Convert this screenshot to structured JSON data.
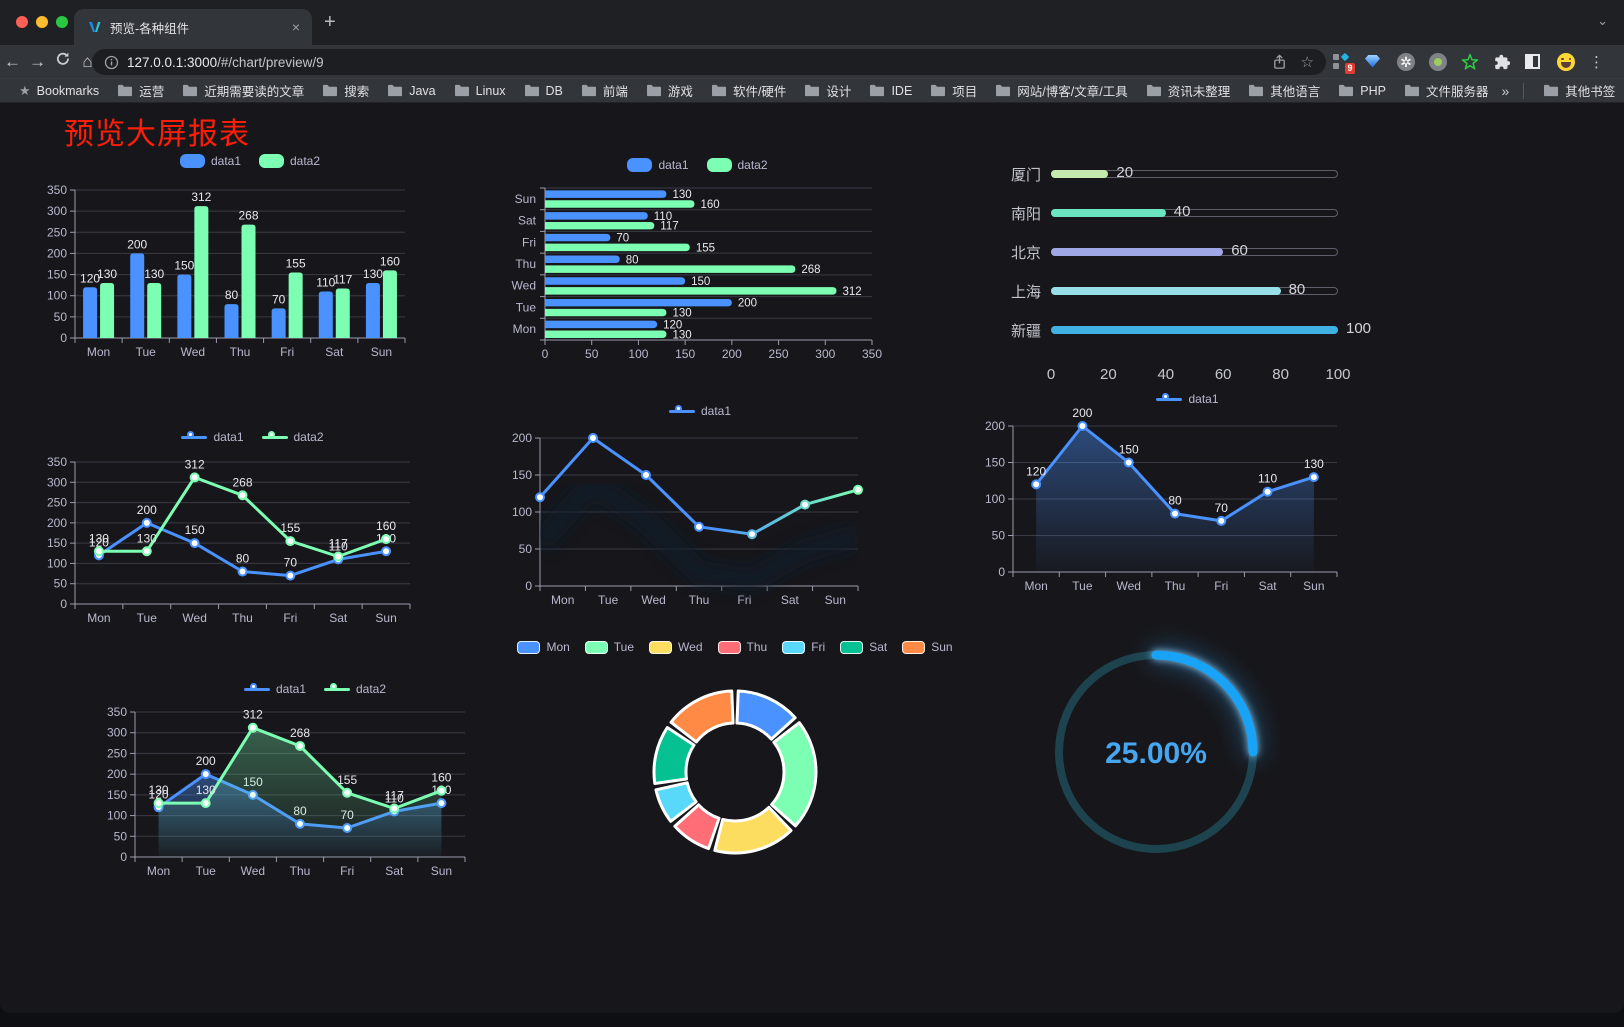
{
  "browser": {
    "tab_title": "预览-各种组件",
    "url_host": "127.0.0.1:3000",
    "url_path": "/#/chart/preview/9",
    "extension_badge": "9",
    "icons": {
      "close": "×",
      "new_tab": "+",
      "tab_chevron": "⌄",
      "back": "←",
      "forward": "→",
      "home": "⌂",
      "bookmark_star": "☆",
      "bookmarks_bar_star": "★",
      "overflow_chevrons": "»",
      "menu_dots": "⋮",
      "asterisk": "✲"
    },
    "extensions": [
      "switch-proxy",
      "blue-gem",
      "asterisk-circle",
      "green-dot",
      "green-star",
      "puzzle",
      "dark-half-square",
      "emoji"
    ],
    "bookmarks_bar": {
      "root_label": "Bookmarks",
      "folders": [
        "运营",
        "近期需要读的文章",
        "搜索",
        "Java",
        "Linux",
        "DB",
        "前端",
        "游戏",
        "软件/硬件",
        "设计",
        "IDE",
        "项目",
        "网站/博客/文章/工具",
        "资讯未整理",
        "其他语言",
        "PHP",
        "文件服务器"
      ],
      "other_bookmarks": "其他书签"
    }
  },
  "page": {
    "title": "预览大屏报表",
    "title_color": "#fb1e08",
    "background": "#17171b",
    "axis_text_color": "#b9b8ce",
    "grid_color": "#3a3a45"
  },
  "chart_data": [
    {
      "id": "grouped-bar",
      "type": "bar",
      "categories": [
        "Mon",
        "Tue",
        "Wed",
        "Thu",
        "Fri",
        "Sat",
        "Sun"
      ],
      "series": [
        {
          "name": "data1",
          "color": "#4992ff",
          "values": [
            120,
            200,
            150,
            80,
            70,
            110,
            130
          ]
        },
        {
          "name": "data2",
          "color": "#7cffb2",
          "values": [
            130,
            130,
            312,
            268,
            155,
            117,
            160
          ]
        }
      ],
      "ylim": [
        0,
        350
      ],
      "ytick": 50,
      "grid": true,
      "legend_position": "top",
      "value_labels": true
    },
    {
      "id": "horizontal-bar",
      "type": "bar",
      "orientation": "horizontal",
      "categories": [
        "Mon",
        "Tue",
        "Wed",
        "Thu",
        "Fri",
        "Sat",
        "Sun"
      ],
      "display_order_top_to_bottom": [
        "Sun",
        "Sat",
        "Fri",
        "Thu",
        "Wed",
        "Tue",
        "Mon"
      ],
      "series": [
        {
          "name": "data1",
          "color": "#4992ff",
          "values": [
            120,
            200,
            150,
            80,
            70,
            110,
            130
          ]
        },
        {
          "name": "data2",
          "color": "#7cffb2",
          "values": [
            130,
            130,
            312,
            268,
            155,
            117,
            160
          ]
        }
      ],
      "xlim": [
        0,
        350
      ],
      "xtick": 50,
      "legend_position": "top",
      "value_labels": true
    },
    {
      "id": "capsule-bar",
      "type": "bar",
      "orientation": "horizontal",
      "style": "capsule",
      "items": [
        {
          "label": "厦门",
          "value": 20,
          "color": "#c4ebad"
        },
        {
          "label": "南阳",
          "value": 40,
          "color": "#6be6c1"
        },
        {
          "label": "北京",
          "value": 60,
          "color": "#a0a7e6"
        },
        {
          "label": "上海",
          "value": 80,
          "color": "#96dee8"
        },
        {
          "label": "新疆",
          "value": 100,
          "color": "#3fb1e3"
        }
      ],
      "xlim": [
        0,
        100
      ],
      "xticks": [
        0,
        20,
        40,
        60,
        80,
        100
      ]
    },
    {
      "id": "dual-line",
      "type": "line",
      "categories": [
        "Mon",
        "Tue",
        "Wed",
        "Thu",
        "Fri",
        "Sat",
        "Sun"
      ],
      "series": [
        {
          "name": "data1",
          "color": "#4992ff",
          "values": [
            120,
            200,
            150,
            80,
            70,
            110,
            130
          ]
        },
        {
          "name": "data2",
          "color": "#7cffb2",
          "values": [
            130,
            130,
            312,
            268,
            155,
            117,
            160
          ]
        }
      ],
      "ylim": [
        0,
        350
      ],
      "ytick": 50,
      "legend_position": "top",
      "value_labels": true
    },
    {
      "id": "gradient-line",
      "type": "line",
      "categories": [
        "Mon",
        "Tue",
        "Wed",
        "Thu",
        "Fri",
        "Sat",
        "Sun"
      ],
      "series": [
        {
          "name": "data1",
          "color": "#4992ff",
          "gradient": [
            "#4992ff",
            "#7cffb2"
          ],
          "values": [
            120,
            200,
            150,
            80,
            70,
            110,
            130
          ]
        }
      ],
      "ylim": [
        0,
        200
      ],
      "ytick": 50,
      "legend_position": "top",
      "value_labels": false,
      "shadow": true
    },
    {
      "id": "single-area",
      "type": "area",
      "categories": [
        "Mon",
        "Tue",
        "Wed",
        "Thu",
        "Fri",
        "Sat",
        "Sun"
      ],
      "series": [
        {
          "name": "data1",
          "color": "#4992ff",
          "area": true,
          "values": [
            120,
            200,
            150,
            80,
            70,
            110,
            130
          ]
        }
      ],
      "ylim": [
        0,
        200
      ],
      "ytick": 50,
      "legend_position": "top",
      "value_labels": true
    },
    {
      "id": "dual-area",
      "type": "area",
      "categories": [
        "Mon",
        "Tue",
        "Wed",
        "Thu",
        "Fri",
        "Sat",
        "Sun"
      ],
      "series": [
        {
          "name": "data1",
          "color": "#4992ff",
          "area": true,
          "values": [
            120,
            200,
            150,
            80,
            70,
            110,
            130
          ]
        },
        {
          "name": "data2",
          "color": "#7cffb2",
          "area": true,
          "values": [
            130,
            130,
            312,
            268,
            155,
            117,
            160
          ]
        }
      ],
      "ylim": [
        0,
        350
      ],
      "ytick": 50,
      "legend_position": "top",
      "value_labels": true
    },
    {
      "id": "donut",
      "type": "pie",
      "inner_radius_ratio": 0.6,
      "labels": [
        "Mon",
        "Tue",
        "Wed",
        "Thu",
        "Fri",
        "Sat",
        "Sun"
      ],
      "values": [
        120,
        200,
        150,
        80,
        70,
        110,
        130
      ],
      "colors": [
        "#4992ff",
        "#7cffb2",
        "#fddd60",
        "#ff6e76",
        "#58d9f9",
        "#05c091",
        "#ff8a45"
      ],
      "border_color": "#ffffff",
      "legend_position": "top"
    },
    {
      "id": "gauge",
      "type": "gauge",
      "value": 25,
      "max": 100,
      "display": "25.00%",
      "progress_color": "#18a3f7",
      "track_color": "#1d434e",
      "text_color": "#46a6ef"
    }
  ]
}
